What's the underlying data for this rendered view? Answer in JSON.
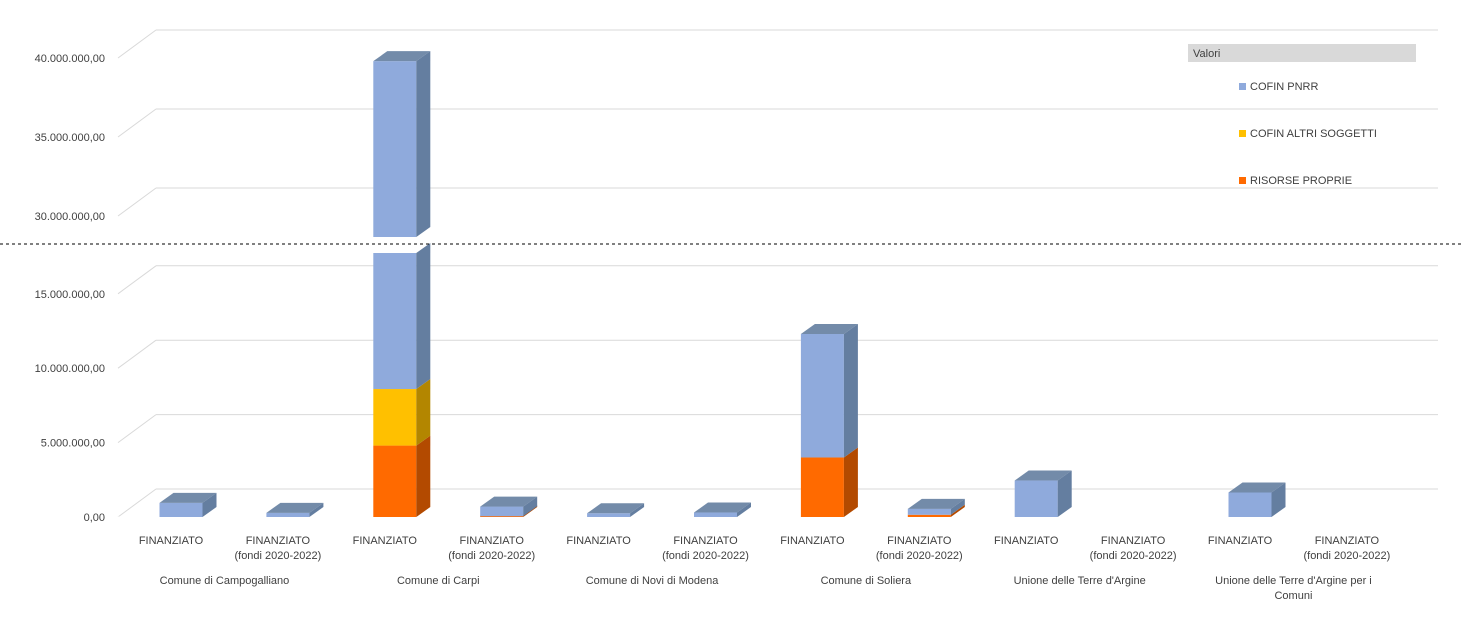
{
  "chart_data": {
    "type": "bar",
    "stacked": true,
    "three_d": true,
    "axis_break": true,
    "grid": true,
    "legend": {
      "title": "Valori",
      "position": "top-right"
    },
    "y_ticks_lower": [
      "0,00",
      "5.000.000,00",
      "10.000.000,00",
      "15.000.000,00"
    ],
    "y_ticks_upper": [
      "30.000.000,00",
      "35.000.000,00",
      "40.000.000,00"
    ],
    "ylim_lower": [
      0,
      17000000
    ],
    "ylim_upper": [
      28000000,
      42000000
    ],
    "groups": [
      {
        "label": "Comune di Campogalliano",
        "categories": [
          "FINANZIATO",
          "FINANZIATO\n(fondi 2020-2022)"
        ]
      },
      {
        "label": "Comune di Carpi",
        "categories": [
          "FINANZIATO",
          "FINANZIATO\n(fondi 2020-2022)"
        ]
      },
      {
        "label": "Comune di Novi di Modena",
        "categories": [
          "FINANZIATO",
          "FINANZIATO\n(fondi 2020-2022)"
        ]
      },
      {
        "label": "Comune di Soliera",
        "categories": [
          "FINANZIATO",
          "FINANZIATO\n(fondi 2020-2022)"
        ]
      },
      {
        "label": "Unione delle Terre d'Argine",
        "categories": [
          "FINANZIATO",
          "FINANZIATO\n(fondi 2020-2022)"
        ]
      },
      {
        "label": "Unione delle Terre d'Argine per i\nComuni",
        "categories": [
          "FINANZIATO",
          "FINANZIATO\n(fondi 2020-2022)"
        ]
      }
    ],
    "series": [
      {
        "name": "RISORSE PROPRIE",
        "color": "#ff6a00",
        "side_color": "#b34a00",
        "values": [
          0,
          0,
          4800000,
          50000,
          0,
          0,
          4000000,
          150000,
          0,
          0,
          0,
          0
        ]
      },
      {
        "name": "COFIN ALTRI SOGGETTI",
        "color": "#ffc000",
        "side_color": "#b38600",
        "values": [
          0,
          0,
          3800000,
          0,
          0,
          0,
          0,
          0,
          0,
          0,
          0,
          0
        ]
      },
      {
        "name": "COFIN PNRR",
        "color": "#8faadc",
        "side_color": "#647ea0",
        "values": [
          950000,
          280000,
          31200000,
          650000,
          250000,
          300000,
          8300000,
          400000,
          2450000,
          0,
          1650000,
          0
        ]
      }
    ]
  }
}
